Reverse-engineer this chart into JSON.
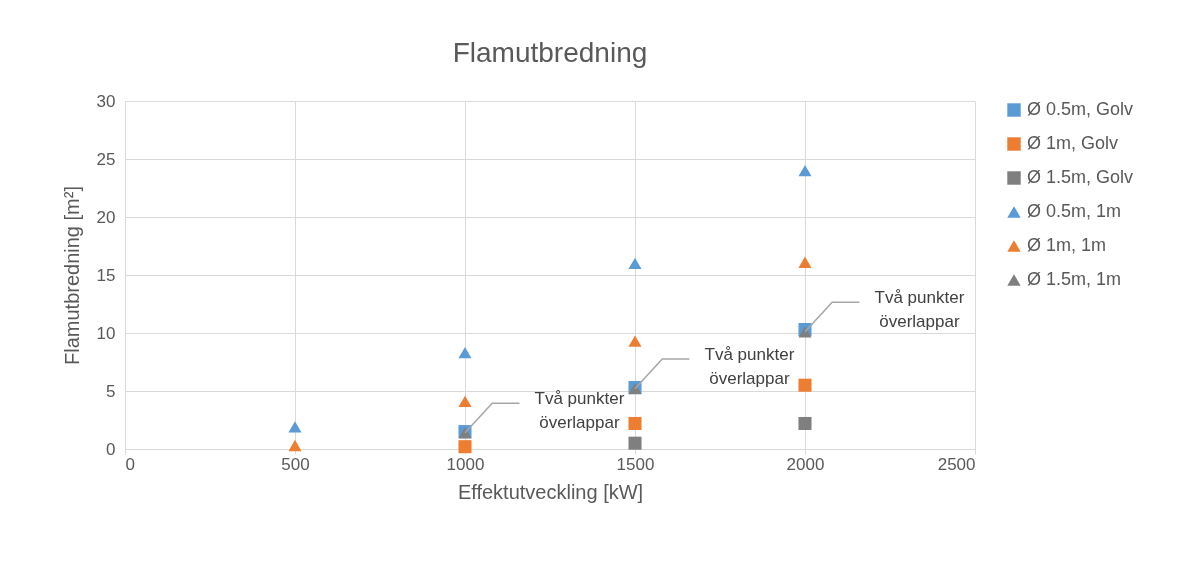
{
  "chart_data": {
    "type": "scatter",
    "title": "Flamutbredning",
    "xlabel": "Effektutveckling [kW]",
    "ylabel": "Flamutbredning [m²]",
    "x": [
      500,
      1000,
      1500,
      2000
    ],
    "series": [
      {
        "name": "Ø 0.5m, Golv",
        "color": "#5b9bd5",
        "marker": "square",
        "values": [
          null,
          1.5,
          5.3,
          10.3
        ]
      },
      {
        "name": "Ø 1m, Golv",
        "color": "#ed7d31",
        "marker": "square",
        "values": [
          null,
          0.2,
          2.2,
          5.5
        ]
      },
      {
        "name": "Ø 1.5m, Golv",
        "color": "#7f7f7f",
        "marker": "square",
        "values": [
          null,
          null,
          0.5,
          2.2
        ]
      },
      {
        "name": "Ø 0.5m, 1m",
        "color": "#5b9bd5",
        "marker": "triangle",
        "values": [
          1.9,
          8.3,
          16,
          24
        ]
      },
      {
        "name": "Ø 1m, 1m",
        "color": "#ed7d31",
        "marker": "triangle",
        "values": [
          0.3,
          4.1,
          9.3,
          16.1
        ]
      },
      {
        "name": "Ø 1.5m, 1m",
        "color": "#7f7f7f",
        "marker": "triangle",
        "values": [
          null,
          1.4,
          5.2,
          10.1
        ]
      }
    ],
    "xlim": [
      0,
      2500
    ],
    "xticks": [
      0,
      500,
      1000,
      1500,
      2000,
      2500
    ],
    "ylim": [
      0,
      30
    ],
    "yticks": [
      0,
      5,
      10,
      15,
      20,
      25,
      30
    ],
    "grid": true,
    "legend": "right",
    "annotations": [
      {
        "text": "Två punkter överlappar",
        "x": 1000,
        "y": 1.4
      },
      {
        "text": "Två punkter överlappar",
        "x": 1500,
        "y": 5.2
      },
      {
        "text": "Två punkter överlappar",
        "x": 2000,
        "y": 10.1
      }
    ]
  }
}
